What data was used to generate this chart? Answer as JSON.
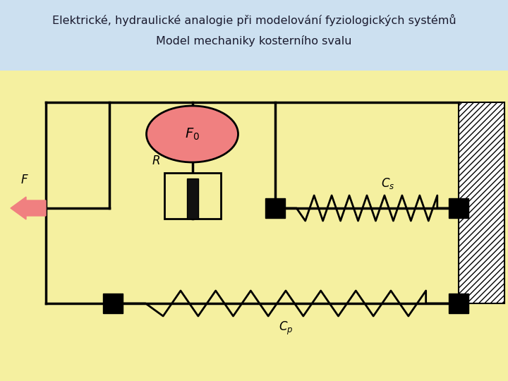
{
  "title_line1": "Elektrické, hydraulické analogie při modelování fyziologických systémů",
  "title_line2": "Model mechaniky kosterního svalu",
  "bg_light_blue": "#cce0f0",
  "bg_yellow": "#f5f0a0",
  "title_color": "#1a1a2e",
  "line_color": "#000000",
  "source_fill": "#f08080",
  "arrow_fill": "#f08080",
  "label_F0": "$F_0$",
  "label_R": "$R$",
  "label_Cs": "$C_s$",
  "label_Cp": "$C_p$",
  "label_F": "$F$",
  "wall_hatch": "////",
  "lw": 2.5
}
